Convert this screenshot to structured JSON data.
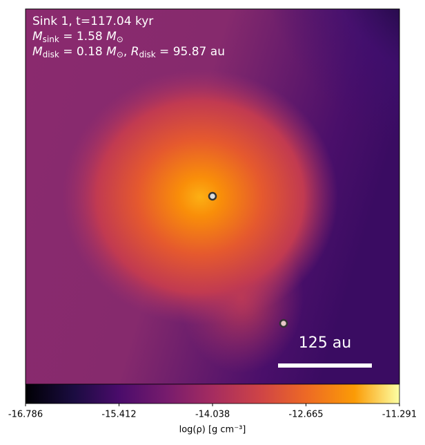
{
  "chart_data": {
    "type": "image",
    "annotations": {
      "line1": "Sink 1, t=117.04 kyr",
      "line2": [
        "M",
        "sink",
        " = 1.58 ",
        "M",
        "⊙"
      ],
      "line3": [
        "M",
        "disk",
        " = 0.18 ",
        "M",
        "⊙",
        ", ",
        "R",
        "disk",
        " = 95.87 au"
      ]
    },
    "scale_bar": "125 au",
    "colorbar": {
      "label": "log(ρ) [g cm⁻³]",
      "lim": [
        -16.786,
        -11.291
      ],
      "ticks": [
        -16.786,
        -15.412,
        -14.038,
        -12.665,
        -11.291
      ]
    }
  }
}
